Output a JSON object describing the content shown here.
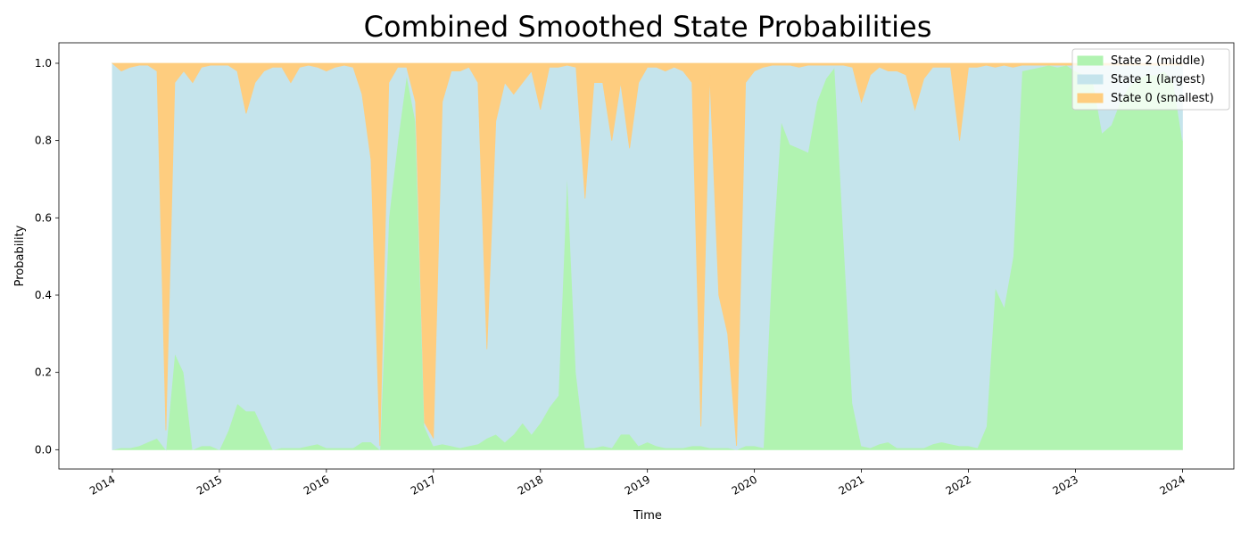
{
  "chart_data": {
    "type": "stacked_area",
    "title": "Combined Smoothed State Probabilities",
    "x_label": "Time",
    "y_label": "Probability",
    "x": [
      2014.0,
      2014.083,
      2014.167,
      2014.25,
      2014.333,
      2014.417,
      2014.5,
      2014.583,
      2014.667,
      2014.75,
      2014.833,
      2014.917,
      2015.0,
      2015.083,
      2015.167,
      2015.25,
      2015.333,
      2015.417,
      2015.5,
      2015.583,
      2015.667,
      2015.75,
      2015.833,
      2015.917,
      2016.0,
      2016.083,
      2016.167,
      2016.25,
      2016.333,
      2016.417,
      2016.5,
      2016.583,
      2016.667,
      2016.75,
      2016.833,
      2016.917,
      2017.0,
      2017.083,
      2017.167,
      2017.25,
      2017.333,
      2017.417,
      2017.5,
      2017.583,
      2017.667,
      2017.75,
      2017.833,
      2017.917,
      2018.0,
      2018.083,
      2018.167,
      2018.25,
      2018.333,
      2018.417,
      2018.5,
      2018.583,
      2018.667,
      2018.75,
      2018.833,
      2018.917,
      2019.0,
      2019.083,
      2019.167,
      2019.25,
      2019.333,
      2019.417,
      2019.5,
      2019.583,
      2019.667,
      2019.75,
      2019.833,
      2019.917,
      2020.0,
      2020.083,
      2020.167,
      2020.25,
      2020.333,
      2020.417,
      2020.5,
      2020.583,
      2020.667,
      2020.75,
      2020.833,
      2020.917,
      2021.0,
      2021.083,
      2021.167,
      2021.25,
      2021.333,
      2021.417,
      2021.5,
      2021.583,
      2021.667,
      2021.75,
      2021.833,
      2021.917,
      2022.0,
      2022.083,
      2022.167,
      2022.25,
      2022.333,
      2022.417,
      2022.5,
      2022.583,
      2022.667,
      2022.75,
      2022.833,
      2022.917,
      2023.0,
      2023.083,
      2023.167,
      2023.25,
      2023.333,
      2023.417,
      2023.5,
      2023.583,
      2023.667,
      2023.75,
      2023.833,
      2023.917,
      2024.0
    ],
    "series": [
      {
        "name": "State 2 (middle)",
        "color": "#b1f3b1",
        "values": [
          0,
          0.005,
          0.005,
          0.01,
          0.02,
          0.03,
          0,
          0.25,
          0.2,
          0,
          0.01,
          0.01,
          0,
          0.05,
          0.12,
          0.1,
          0.1,
          0.05,
          0,
          0.005,
          0.005,
          0.005,
          0.01,
          0.015,
          0.005,
          0.005,
          0.005,
          0.005,
          0.02,
          0.02,
          0,
          0.6,
          0.8,
          0.97,
          0.85,
          0.06,
          0.01,
          0.015,
          0.01,
          0.005,
          0.01,
          0.015,
          0.03,
          0.04,
          0.02,
          0.04,
          0.07,
          0.04,
          0.07,
          0.11,
          0.14,
          0.72,
          0.2,
          0.005,
          0.005,
          0.01,
          0.005,
          0.04,
          0.04,
          0.01,
          0.02,
          0.01,
          0.005,
          0.005,
          0.005,
          0.01,
          0.01,
          0.005,
          0.005,
          0.005,
          0,
          0.01,
          0.01,
          0.005,
          0.5,
          0.85,
          0.79,
          0.78,
          0.77,
          0.9,
          0.96,
          0.99,
          0.55,
          0.12,
          0.01,
          0.005,
          0.015,
          0.02,
          0.005,
          0.005,
          0.005,
          0.005,
          0.015,
          0.02,
          0.015,
          0.01,
          0.01,
          0.005,
          0.06,
          0.42,
          0.37,
          0.5,
          0.98,
          0.985,
          0.99,
          0.995,
          0.99,
          0.995,
          0.98,
          0.97,
          0.95,
          0.82,
          0.84,
          0.9,
          0.94,
          0.96,
          0.97,
          0.97,
          0.98,
          0.95,
          0.8
        ]
      },
      {
        "name": "State 1 (largest)",
        "color": "#c5e4ec",
        "values": [
          1,
          0.975,
          0.985,
          0.985,
          0.975,
          0.95,
          0.05,
          0.7,
          0.78,
          0.95,
          0.98,
          0.985,
          0.995,
          0.945,
          0.86,
          0.77,
          0.85,
          0.93,
          0.99,
          0.985,
          0.945,
          0.985,
          0.985,
          0.975,
          0.975,
          0.985,
          0.99,
          0.985,
          0.9,
          0.73,
          0.01,
          0.35,
          0.19,
          0.02,
          0.05,
          0.01,
          0.02,
          0.885,
          0.97,
          0.975,
          0.98,
          0.935,
          0.23,
          0.81,
          0.93,
          0.88,
          0.88,
          0.94,
          0.81,
          0.88,
          0.85,
          0.275,
          0.79,
          0.645,
          0.945,
          0.94,
          0.795,
          0.91,
          0.74,
          0.94,
          0.97,
          0.98,
          0.975,
          0.985,
          0.975,
          0.94,
          0.05,
          0.965,
          0.395,
          0.295,
          0.01,
          0.94,
          0.97,
          0.985,
          0.495,
          0.145,
          0.205,
          0.21,
          0.225,
          0.095,
          0.035,
          0.005,
          0.445,
          0.87,
          0.89,
          0.965,
          0.975,
          0.96,
          0.975,
          0.965,
          0.875,
          0.955,
          0.975,
          0.97,
          0.975,
          0.79,
          0.98,
          0.985,
          0.935,
          0.57,
          0.625,
          0.49,
          0.015,
          0.01,
          0.005,
          0,
          0.005,
          0,
          0.015,
          0.025,
          0.045,
          0.175,
          0.155,
          0.095,
          0.055,
          0.035,
          0.025,
          0.025,
          0.015,
          0.045,
          0.195
        ]
      },
      {
        "name": "State 0 (smallest)",
        "color": "#fecd7f",
        "values": [
          0,
          0.02,
          0.01,
          0.005,
          0.005,
          0.02,
          0.95,
          0.05,
          0.02,
          0.05,
          0.01,
          0.005,
          0.005,
          0.005,
          0.02,
          0.13,
          0.05,
          0.02,
          0.01,
          0.01,
          0.05,
          0.01,
          0.005,
          0.01,
          0.02,
          0.01,
          0.005,
          0.01,
          0.08,
          0.25,
          0.99,
          0.05,
          0.01,
          0.01,
          0.1,
          0.93,
          0.97,
          0.1,
          0.02,
          0.02,
          0.01,
          0.05,
          0.74,
          0.15,
          0.05,
          0.08,
          0.05,
          0.02,
          0.12,
          0.01,
          0.01,
          0.005,
          0.01,
          0.35,
          0.05,
          0.05,
          0.2,
          0.05,
          0.22,
          0.05,
          0.01,
          0.01,
          0.02,
          0.01,
          0.02,
          0.05,
          0.94,
          0.03,
          0.6,
          0.7,
          0.99,
          0.05,
          0.02,
          0.01,
          0.005,
          0.005,
          0.005,
          0.01,
          0.005,
          0.005,
          0.005,
          0.005,
          0.005,
          0.01,
          0.1,
          0.03,
          0.01,
          0.02,
          0.02,
          0.03,
          0.12,
          0.04,
          0.01,
          0.01,
          0.01,
          0.2,
          0.01,
          0.01,
          0.005,
          0.01,
          0.005,
          0.01,
          0.005,
          0.005,
          0.005,
          0.005,
          0.005,
          0.005,
          0.005,
          0.005,
          0.005,
          0.005,
          0.005,
          0.005,
          0.005,
          0.005,
          0.005,
          0.005,
          0.005,
          0.005,
          0.005
        ]
      }
    ],
    "xlim": [
      2013.5,
      2024.48
    ],
    "xticks": [
      2014,
      2015,
      2016,
      2017,
      2018,
      2019,
      2020,
      2021,
      2022,
      2023,
      2024
    ],
    "ylim": [
      -0.05,
      1.053
    ],
    "yticks": [
      {
        "value": 0,
        "label": "0.0"
      },
      0.2,
      0.4,
      0.6,
      0.8,
      {
        "value": 1,
        "label": "1.0"
      }
    ],
    "legend": "upper right"
  }
}
